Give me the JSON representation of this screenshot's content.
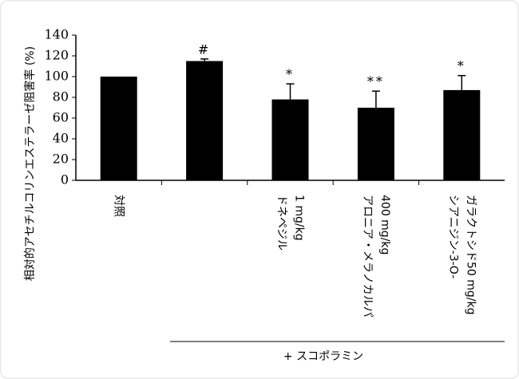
{
  "chart_data": {
    "type": "bar",
    "y_label": "相対的アセチルコリンエステラーゼ阻害率 (%)",
    "categories": [
      "対照",
      null,
      "ドネペジル\n1 mg/kg",
      "アロニア・メラノカルパ\n400 mg/kg",
      "シアニジン-3-O-\nガラクトシド50 mg/kg"
    ],
    "values": [
      100,
      115,
      78,
      70,
      87
    ],
    "errors": [
      null,
      2,
      15,
      16,
      14
    ],
    "markers": [
      null,
      "#",
      "*",
      "**",
      "*"
    ],
    "color": "#000000",
    "ylim": [
      0,
      140
    ],
    "yticks": [
      0,
      20,
      40,
      60,
      80,
      100,
      120,
      140
    ],
    "group_label": "+ スコポラミン"
  }
}
